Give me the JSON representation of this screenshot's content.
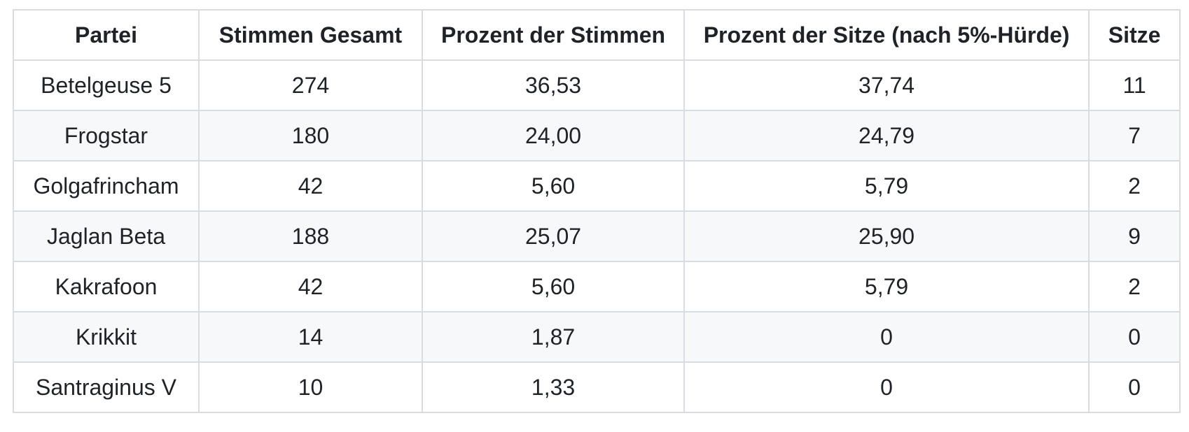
{
  "colors": {
    "background": "#ffffff",
    "border": "#d9dde2",
    "stripe_row": "#f6f8fa",
    "text": "#1f2328"
  },
  "table": {
    "columns": [
      {
        "key": "partei",
        "label": "Partei"
      },
      {
        "key": "stimmen-gesamt",
        "label": "Stimmen Gesamt"
      },
      {
        "key": "prozent-der-stimmen",
        "label": "Prozent der Stimmen"
      },
      {
        "key": "prozent-der-sitze",
        "label": "Prozent der Sitze (nach 5%-Hürde)"
      },
      {
        "key": "sitze",
        "label": "Sitze"
      }
    ],
    "rows": [
      [
        "Betelgeuse 5",
        "274",
        "36,53",
        "37,74",
        "11"
      ],
      [
        "Frogstar",
        "180",
        "24,00",
        "24,79",
        "7"
      ],
      [
        "Golgafrincham",
        "42",
        "5,60",
        "5,79",
        "2"
      ],
      [
        "Jaglan Beta",
        "188",
        "25,07",
        "25,90",
        "9"
      ],
      [
        "Kakrafoon",
        "42",
        "5,60",
        "5,79",
        "2"
      ],
      [
        "Krikkit",
        "14",
        "1,87",
        "0",
        "0"
      ],
      [
        "Santraginus V",
        "10",
        "1,33",
        "0",
        "0"
      ]
    ]
  },
  "chart_data": {
    "type": "table",
    "title": "",
    "columns": [
      "Partei",
      "Stimmen Gesamt",
      "Prozent der Stimmen",
      "Prozent der Sitze (nach 5%-Hürde)",
      "Sitze"
    ],
    "rows": [
      [
        "Betelgeuse 5",
        274,
        36.53,
        37.74,
        11
      ],
      [
        "Frogstar",
        180,
        24.0,
        24.79,
        7
      ],
      [
        "Golgafrincham",
        42,
        5.6,
        5.79,
        2
      ],
      [
        "Jaglan Beta",
        188,
        25.07,
        25.9,
        9
      ],
      [
        "Kakrafoon",
        42,
        5.6,
        5.79,
        2
      ],
      [
        "Krikkit",
        14,
        1.87,
        0,
        0
      ],
      [
        "Santraginus V",
        10,
        1.33,
        0,
        0
      ]
    ]
  }
}
